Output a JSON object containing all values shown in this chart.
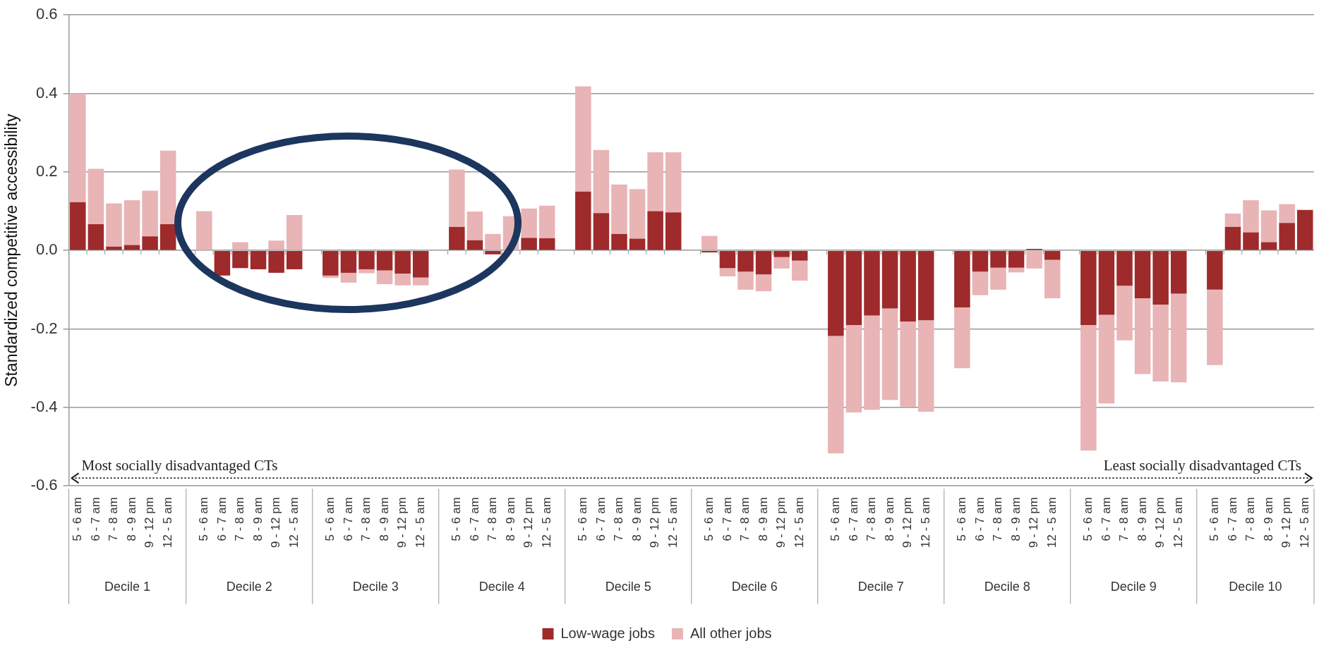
{
  "chart_data": {
    "type": "bar",
    "stacked": true,
    "ylabel": "Standardized competitive accessibility",
    "categories": [
      "5 - 6 am",
      "6 - 7 am",
      "7 - 8 am",
      "8 - 9 am",
      "9 - 12 pm",
      "12 - 5 am",
      "5 - 6 am",
      "6 - 7 am",
      "7 - 8 am",
      "8 - 9 am",
      "9 - 12 pm",
      "12 - 5 am",
      "5 - 6 am",
      "6 - 7 am",
      "7 - 8 am",
      "8 - 9 am",
      "9 - 12 pm",
      "12 - 5 am",
      "5 - 6 am",
      "6 - 7 am",
      "7 - 8 am",
      "8 - 9 am",
      "9 - 12 pm",
      "12 - 5 am",
      "5 - 6 am",
      "6 - 7 am",
      "7 - 8 am",
      "8 - 9 am",
      "9 - 12 pm",
      "12 - 5 am",
      "5 - 6 am",
      "6 - 7 am",
      "7 - 8 am",
      "8 - 9 am",
      "9 - 12 pm",
      "12 - 5 am",
      "5 - 6 am",
      "6 - 7 am",
      "7 - 8 am",
      "8 - 9 am",
      "9 - 12 pm",
      "12 - 5 am",
      "5 - 6 am",
      "6 - 7 am",
      "7 - 8 am",
      "8 - 9 am",
      "9 - 12 pm",
      "12 - 5 am",
      "5 - 6 am",
      "6 - 7 am",
      "7 - 8 am",
      "8 - 9 am",
      "9 - 12 pm",
      "12 - 5 am",
      "5 - 6 am",
      "6 - 7 am",
      "7 - 8 am",
      "8 - 9 am",
      "9 - 12 pm",
      "12 - 5 am"
    ],
    "series": [
      {
        "name": "Low-wage jobs",
        "color": "#9e2a2b",
        "values": [
          0.123,
          0.067,
          0.01,
          0.014,
          0.036,
          0.067,
          0.0,
          -0.064,
          -0.045,
          -0.048,
          -0.057,
          -0.048,
          -0.064,
          -0.057,
          -0.048,
          -0.051,
          -0.059,
          -0.069,
          0.06,
          0.026,
          -0.01,
          null,
          0.032,
          0.031,
          0.15,
          0.095,
          0.042,
          0.03,
          0.1,
          0.097,
          -0.005,
          -0.045,
          -0.054,
          -0.061,
          -0.017,
          -0.026,
          -0.218,
          -0.19,
          -0.166,
          -0.148,
          -0.181,
          -0.178,
          -0.145,
          -0.054,
          -0.044,
          -0.044,
          0.004,
          -0.024,
          -0.19,
          -0.164,
          -0.09,
          -0.122,
          -0.138,
          -0.11,
          -0.1,
          0.06,
          0.046,
          0.021,
          0.07,
          0.103
        ]
      },
      {
        "name": "All other jobs",
        "color": "#e8b4b5",
        "values": [
          0.277,
          0.141,
          0.11,
          0.114,
          0.116,
          0.187,
          0.1,
          null,
          0.021,
          null,
          0.025,
          0.09,
          -0.006,
          -0.025,
          -0.01,
          -0.035,
          -0.03,
          -0.02,
          0.146,
          0.073,
          0.042,
          0.087,
          0.075,
          0.083,
          0.268,
          0.161,
          0.126,
          0.126,
          0.15,
          0.153,
          0.037,
          -0.021,
          -0.046,
          -0.043,
          -0.029,
          -0.051,
          -0.299,
          -0.223,
          -0.24,
          -0.233,
          -0.217,
          -0.233,
          -0.155,
          -0.06,
          -0.056,
          -0.012,
          -0.046,
          -0.098,
          -0.32,
          -0.226,
          -0.139,
          -0.193,
          -0.196,
          -0.226,
          -0.192,
          0.034,
          0.082,
          0.081,
          0.048,
          null
        ]
      }
    ],
    "ylim": [
      -0.6,
      0.6
    ],
    "yticks": [
      {
        "value": -0.6,
        "label": "-0.6"
      },
      {
        "value": -0.4,
        "label": "-0.4"
      },
      {
        "value": -0.2,
        "label": "-0.2"
      },
      {
        "value": 0,
        "label": "0.0"
      },
      {
        "value": 0.2,
        "label": "0.2"
      },
      {
        "value": 0.4,
        "label": "0.4"
      },
      {
        "value": 0.6,
        "label": "0.6"
      }
    ],
    "grid": "y",
    "legend": "bottom",
    "ref_lines": [
      {
        "axis": "y",
        "value": -0.58,
        "color": "#222222",
        "line_style": "dotted"
      }
    ],
    "annotations": [
      "Most socially disadvantaged CTs",
      "Least socially disadvantaged CTs",
      "Decile 1",
      "Decile 2",
      "Decile 3",
      "Decile 4",
      "Decile 5",
      "Decile 6",
      "Decile 7",
      "Decile 8",
      "Decile 9",
      "Decile 10"
    ]
  }
}
